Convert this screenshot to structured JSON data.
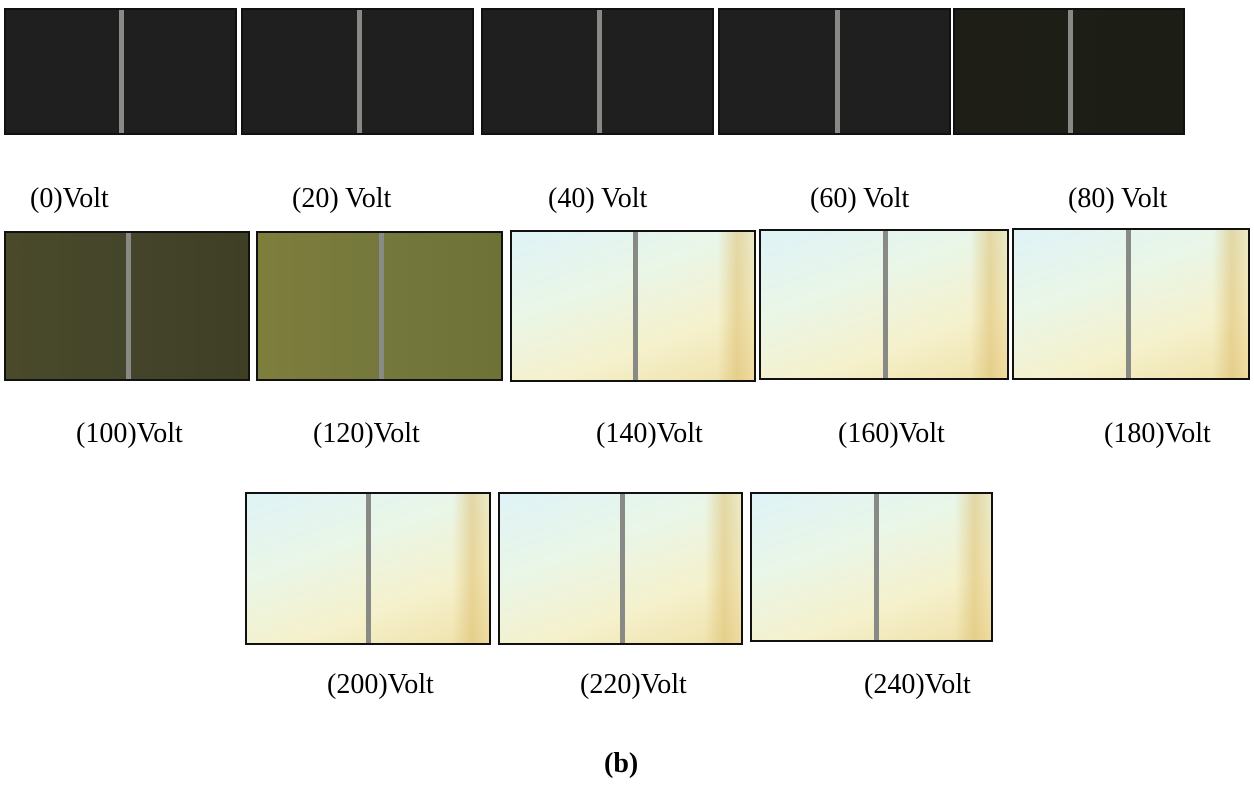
{
  "captions": {
    "v0": "(0)Volt",
    "v20": "(20) Volt",
    "v40": "(40) Volt",
    "v60": "(60) Volt",
    "v80": "(80) Volt",
    "v100": "(100)Volt",
    "v120": "(120)Volt",
    "v140": "(140)Volt",
    "v160": "(160)Volt",
    "v180": "(180)Volt",
    "v200": "(200)Volt",
    "v220": "(220)Volt",
    "v240": "(240)Volt"
  },
  "figure_label": "(b)"
}
